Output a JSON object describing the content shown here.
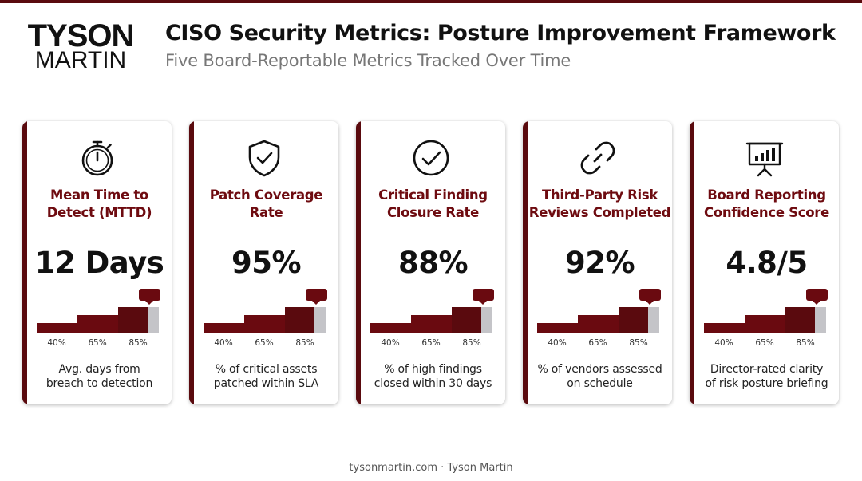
{
  "header": {
    "logo_top": "TYSON",
    "logo_bottom": "MARTIN",
    "title": "CISO Security Metrics: Posture Improvement Framework",
    "subtitle": "Five Board-Reportable Metrics Tracked Over Time"
  },
  "colors": {
    "accent": "#5a0a0e",
    "label": "#6e0b10",
    "remaining": "#c4c4c8"
  },
  "cards": [
    {
      "icon": "stopwatch-icon",
      "label_line1": "Mean Time to",
      "label_line2": "Detect (MTTD)",
      "value": "12 Days",
      "ticks": [
        "40%",
        "65%",
        "85%"
      ],
      "desc_line1": "Avg. days from",
      "desc_line2": "breach to detection"
    },
    {
      "icon": "shield-check-icon",
      "label_line1": "Patch Coverage",
      "label_line2": "Rate",
      "value": "95%",
      "ticks": [
        "40%",
        "65%",
        "85%"
      ],
      "desc_line1": "% of critical assets",
      "desc_line2": "patched within SLA"
    },
    {
      "icon": "check-circle-icon",
      "label_line1": "Critical Finding",
      "label_line2": "Closure Rate",
      "value": "88%",
      "ticks": [
        "40%",
        "65%",
        "85%"
      ],
      "desc_line1": "% of high findings",
      "desc_line2": "closed within 30 days"
    },
    {
      "icon": "chain-link-icon",
      "label_line1": "Third-Party Risk",
      "label_line2": "Reviews Completed",
      "value": "92%",
      "ticks": [
        "40%",
        "65%",
        "85%"
      ],
      "desc_line1": "% of vendors assessed",
      "desc_line2": "on schedule"
    },
    {
      "icon": "presentation-chart-icon",
      "label_line1": "Board Reporting",
      "label_line2": "Confidence Score",
      "value": "4.8/5",
      "ticks": [
        "40%",
        "65%",
        "85%"
      ],
      "desc_line1": "Director-rated clarity",
      "desc_line2": "of risk posture briefing"
    }
  ],
  "footer": {
    "text": "tysonmartin.com · Tyson Martin"
  }
}
